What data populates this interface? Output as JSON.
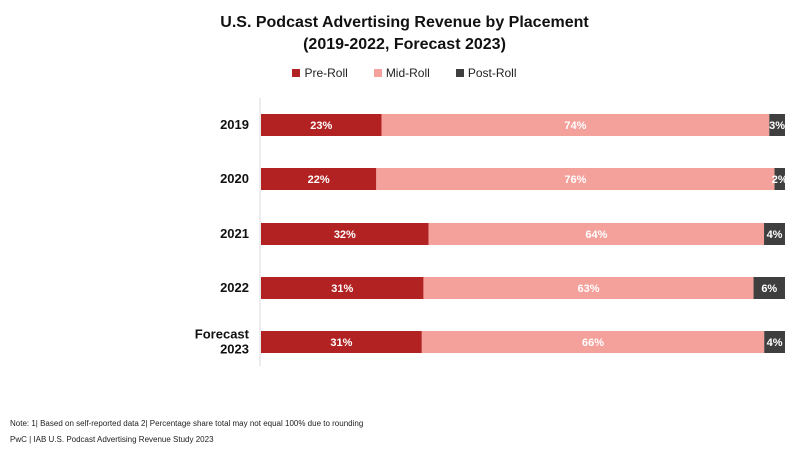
{
  "chart_data": {
    "type": "bar",
    "orientation": "horizontal",
    "stacked": true,
    "title": "U.S. Podcast Advertising Revenue by Placement",
    "subtitle": "(2019-2022, Forecast 2023)",
    "categories": [
      "2019",
      "2020",
      "2021",
      "2022",
      "Forecast 2023"
    ],
    "category_lines": [
      [
        "2019"
      ],
      [
        "2020"
      ],
      [
        "2021"
      ],
      [
        "2022"
      ],
      [
        "Forecast",
        "2023"
      ]
    ],
    "series": [
      {
        "name": "Pre-Roll",
        "color": "#b22222",
        "label_color": "#ffffff",
        "values": [
          23,
          22,
          32,
          31,
          31
        ],
        "labels": [
          "23%",
          "22%",
          "32%",
          "31%",
          "31%"
        ]
      },
      {
        "name": "Mid-Roll",
        "color": "#f4a09b",
        "label_color": "#ffffff",
        "values": [
          74,
          76,
          64,
          63,
          66
        ],
        "labels": [
          "74%",
          "76%",
          "64%",
          "63%",
          "66%"
        ]
      },
      {
        "name": "Post-Roll",
        "color": "#3f3f3f",
        "label_color": "#ffffff",
        "values": [
          3,
          2,
          4,
          6,
          4
        ],
        "labels": [
          "3%",
          "2%",
          "4%",
          "6%",
          "4%"
        ]
      }
    ],
    "xlim": [
      0,
      100
    ],
    "grid": false,
    "legend_position": "top-center"
  },
  "notes": {
    "line1": "Note: 1| Based on self-reported data 2| Percentage share total may not equal 100% due to rounding",
    "line2": "PwC | IAB U.S. Podcast Advertising Revenue Study 2023"
  }
}
